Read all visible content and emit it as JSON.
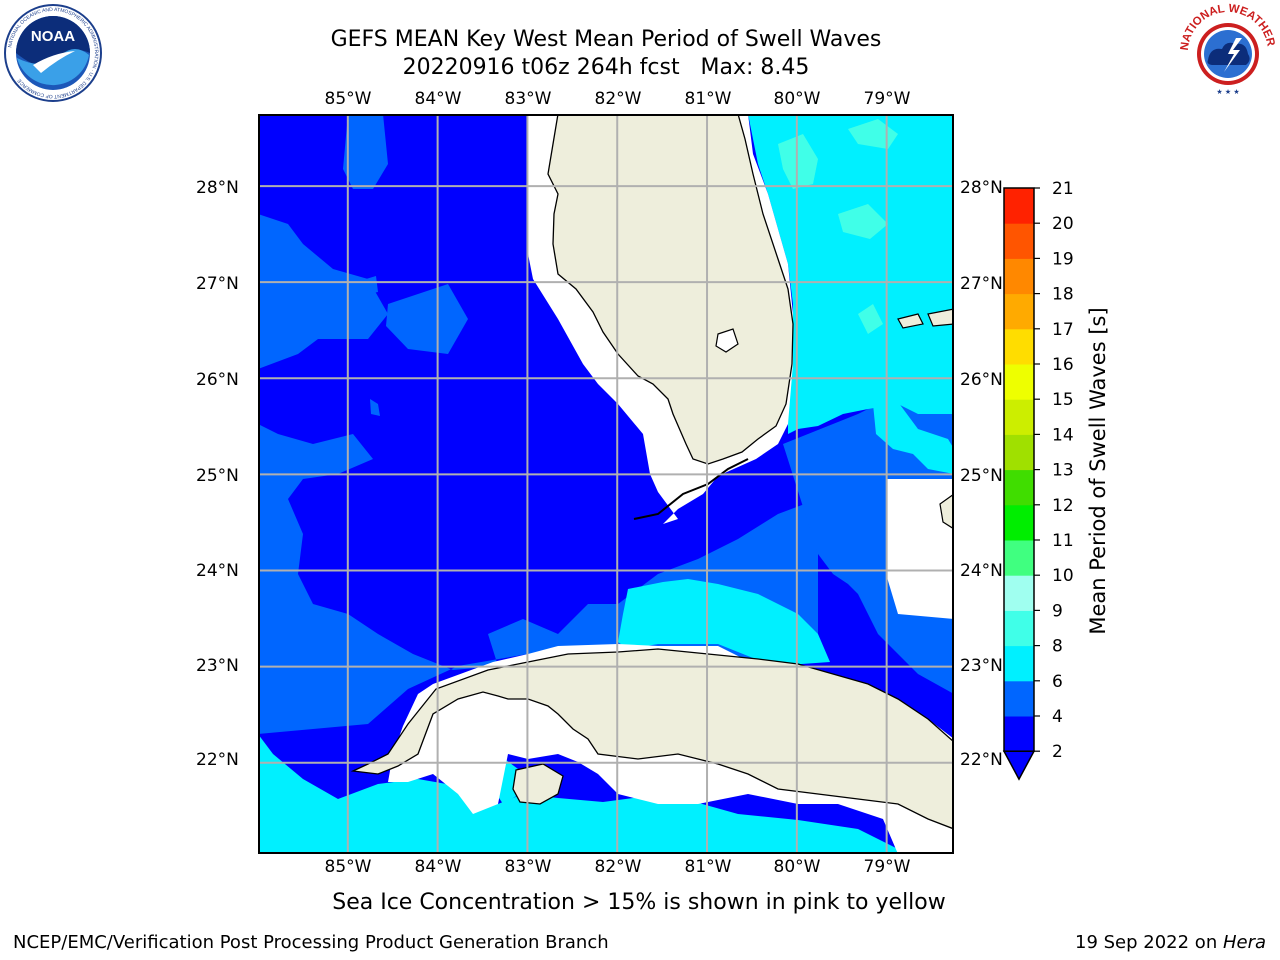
{
  "header": {
    "title_line1": "GEFS MEAN Key West Mean Period of Swell Waves",
    "title_line2": "20220916 t06z 264h fcst   Max: 8.45"
  },
  "logos": {
    "noaa": {
      "name": "noaa-logo",
      "text": "NOAA",
      "ring_text": "NATIONAL OCEANIC AND ATMOSPHERIC ADMINISTRATION · U.S. DEPARTMENT OF COMMERCE"
    },
    "nws": {
      "name": "nws-logo",
      "ring_text": "NATIONAL WEATHER SERVICE"
    }
  },
  "map": {
    "lon_labels": [
      "85°W",
      "84°W",
      "83°W",
      "82°W",
      "81°W",
      "80°W",
      "79°W"
    ],
    "lat_labels": [
      "28°N",
      "27°N",
      "26°N",
      "25°N",
      "24°N",
      "23°N",
      "22°N"
    ],
    "lon_range": [
      -86.0,
      -78.25
    ],
    "lat_range": [
      21.05,
      28.75
    ],
    "land_color": "#eeeedc",
    "grid_color": "#b0b0b0"
  },
  "colorbar": {
    "label": "Mean Period of Swell Waves [s]",
    "ticks": [
      "2",
      "4",
      "6",
      "8",
      "9",
      "10",
      "11",
      "12",
      "13",
      "14",
      "15",
      "16",
      "17",
      "18",
      "19",
      "20",
      "21"
    ],
    "colors": [
      "#0000ff",
      "#0066ff",
      "#00f0ff",
      "#40ffe8",
      "#a0fff0",
      "#40ff80",
      "#00ee00",
      "#40dd00",
      "#a0e000",
      "#ccee00",
      "#eeff00",
      "#ffdd00",
      "#ffaa00",
      "#ff8800",
      "#ff5500",
      "#ff2200"
    ],
    "underflow_color": "#0000ff"
  },
  "note": "Sea Ice Concentration > 15% is shown in pink to yellow",
  "footer": {
    "left": "NCEP/EMC/Verification Post Processing Product Generation Branch",
    "right_prefix": "19 Sep 2022 on ",
    "right_host": "Hera"
  }
}
